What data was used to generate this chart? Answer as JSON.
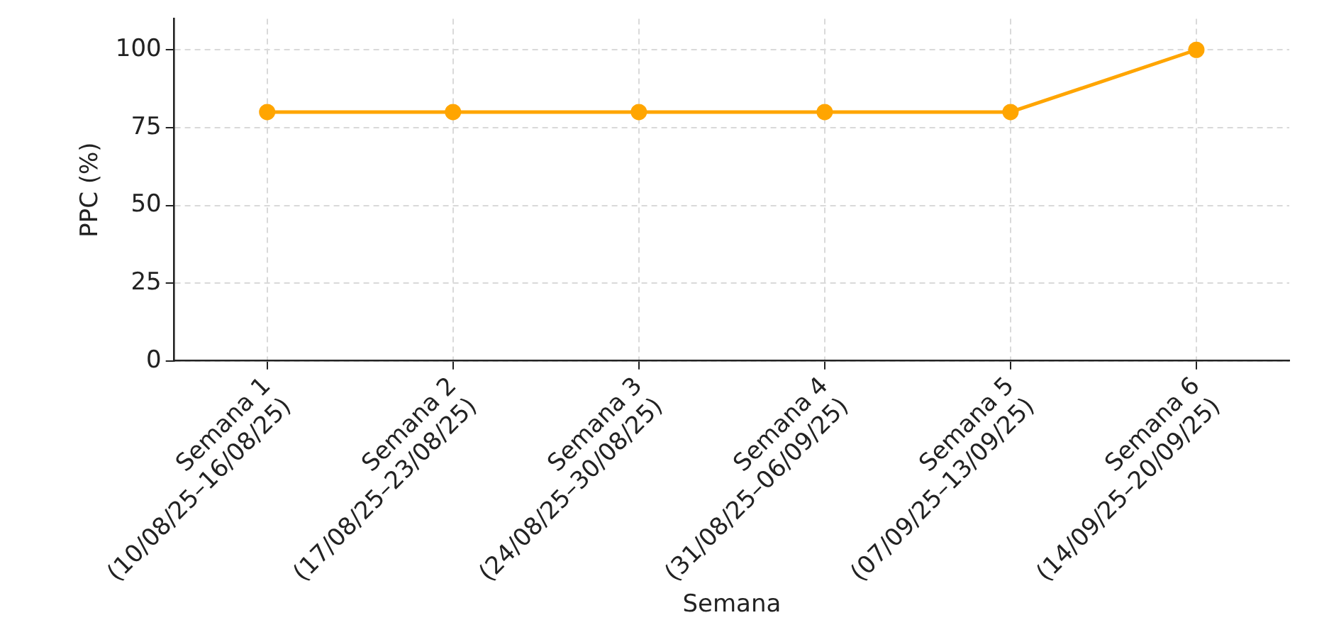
{
  "chart_data": {
    "type": "line",
    "xlabel": "Semana",
    "ylabel": "PPC (%)",
    "categories": [
      "Semana 1\n(10/08/25–16/08/25)",
      "Semana 2\n(17/08/25–23/08/25)",
      "Semana 3\n(24/08/25–30/08/25)",
      "Semana 4\n(31/08/25–06/09/25)",
      "Semana 5\n(07/09/25–13/09/25)",
      "Semana 6\n(14/09/25–20/09/25)"
    ],
    "series": [
      {
        "color": "#ffa500",
        "values": [
          80,
          80,
          80,
          80,
          80,
          100
        ]
      }
    ],
    "ylim": [
      0,
      110
    ],
    "yticks": [
      0,
      25,
      50,
      75,
      100
    ],
    "grid": true,
    "marker": "circle",
    "line_style": "solid",
    "legend": false
  }
}
